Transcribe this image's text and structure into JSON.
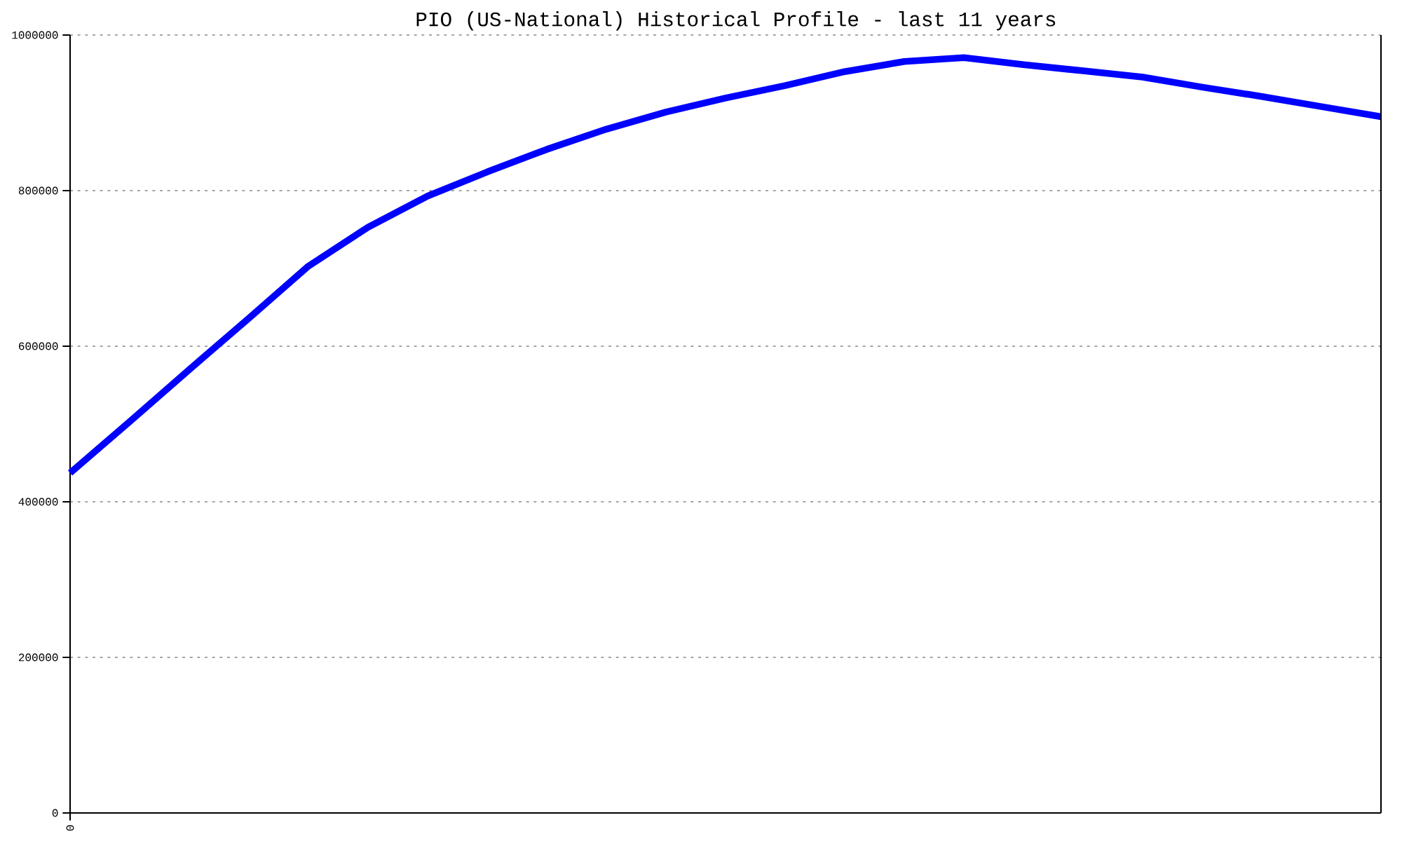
{
  "chart_data": {
    "type": "line",
    "title": "PIO (US-National) Historical Profile - last 11 years",
    "categories": [
      "0",
      null,
      null,
      null,
      null,
      null,
      null,
      null,
      null,
      null,
      null,
      null,
      null,
      null,
      null,
      null,
      null,
      null,
      null,
      null,
      null,
      null,
      null
    ],
    "series": [
      {
        "color": "#0000ff",
        "values": [
          437000,
          503000,
          570000,
          636000,
          703000,
          753000,
          793000,
          824000,
          853000,
          879000,
          901000,
          919000,
          935000,
          953000,
          966000,
          971000,
          962000,
          954000,
          946000,
          933000,
          921000,
          908000,
          895000
        ]
      }
    ],
    "ylim": [
      0,
      1000000
    ],
    "yticks": [
      0,
      200000,
      400000,
      600000,
      800000,
      1000000
    ],
    "grid": "y",
    "marker": "none",
    "line_style": "solid"
  }
}
